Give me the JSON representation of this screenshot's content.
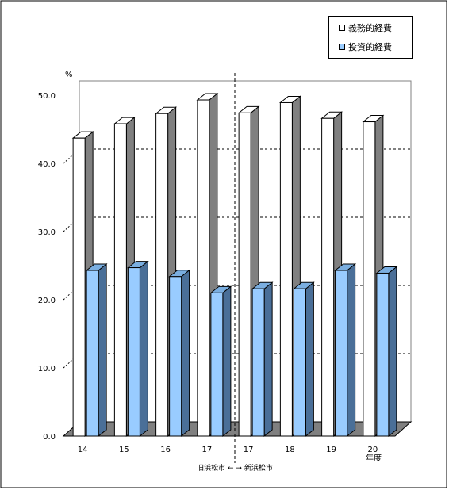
{
  "chart_data": {
    "type": "bar",
    "categories": [
      "14",
      "15",
      "16",
      "17",
      "17",
      "18",
      "19",
      "20"
    ],
    "series": [
      {
        "name": "義務的経費",
        "values": [
          43.7,
          45.8,
          47.3,
          49.3,
          47.4,
          48.9,
          46.6,
          46.1
        ],
        "color": "#ffffff"
      },
      {
        "name": "投資的経費",
        "values": [
          24.3,
          24.7,
          23.4,
          21.0,
          21.6,
          21.6,
          24.3,
          23.9
        ],
        "color": "#99ccff"
      }
    ],
    "ylabel": "%",
    "xlabel": "年度",
    "ylim": [
      0,
      50
    ],
    "yticks": [
      "0.0",
      "10.0",
      "20.0",
      "30.0",
      "40.0",
      "50.0"
    ],
    "grid": true,
    "legend_position": "top-right",
    "annotation": "旧浜松市 ← → 新浜松市"
  }
}
